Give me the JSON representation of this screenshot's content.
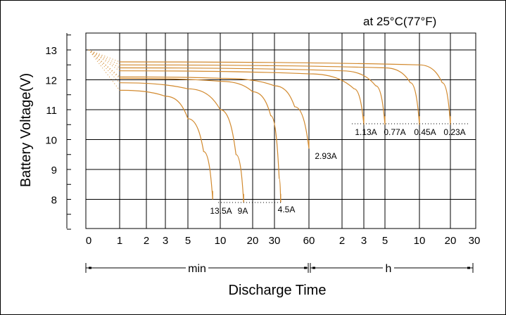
{
  "chart_data": {
    "type": "line",
    "title": "at 25°C(77°F)",
    "xlabel": "Discharge Time",
    "ylabel": "Battery Voltage(V)",
    "ylim": [
      7,
      13.5
    ],
    "y_ticks": [
      "13",
      "12",
      "11",
      "10",
      "9",
      "8"
    ],
    "x_ticks_min": [
      "0",
      "1",
      "2",
      "3",
      "5",
      "10",
      "20",
      "30",
      "60"
    ],
    "x_ticks_h": [
      "2",
      "3",
      "5",
      "10",
      "20",
      "30"
    ],
    "x_units": {
      "min_label": "min",
      "h_label": "h"
    },
    "grid": true,
    "line_color": "#d28a2f",
    "series": [
      {
        "name": "13.5A",
        "points": [
          [
            0,
            13.0
          ],
          [
            1,
            11.65
          ],
          [
            3,
            11.45
          ],
          [
            5,
            10.7
          ],
          [
            7,
            9.6
          ],
          [
            8.5,
            8.0
          ]
        ],
        "end_minutes": 8.5
      },
      {
        "name": "9A",
        "points": [
          [
            0,
            13.0
          ],
          [
            1,
            11.9
          ],
          [
            5,
            11.7
          ],
          [
            10,
            11.0
          ],
          [
            14,
            9.5
          ],
          [
            16.5,
            7.9
          ]
        ],
        "end_minutes": 16.5
      },
      {
        "name": "4.5A",
        "points": [
          [
            0,
            13.0
          ],
          [
            1,
            12.05
          ],
          [
            10,
            11.95
          ],
          [
            20,
            11.6
          ],
          [
            28,
            10.8
          ],
          [
            33,
            8.7
          ],
          [
            34,
            7.9
          ]
        ],
        "end_minutes": 34
      },
      {
        "name": "2.93A",
        "points": [
          [
            0,
            13.0
          ],
          [
            1,
            12.1
          ],
          [
            10,
            12.05
          ],
          [
            30,
            11.8
          ],
          [
            45,
            11.1
          ],
          [
            60,
            9.7
          ]
        ],
        "end_minutes": 60
      },
      {
        "name": "1.13A",
        "points": [
          [
            0,
            13.0
          ],
          [
            1,
            12.3
          ],
          [
            60,
            12.2
          ],
          [
            150,
            11.7
          ],
          [
            180,
            10.5
          ]
        ],
        "end_minutes": 180
      },
      {
        "name": "0.77A",
        "points": [
          [
            0,
            13.0
          ],
          [
            1,
            12.4
          ],
          [
            120,
            12.3
          ],
          [
            240,
            11.8
          ],
          [
            300,
            10.5
          ]
        ],
        "end_minutes": 300
      },
      {
        "name": "0.45A",
        "points": [
          [
            0,
            13.0
          ],
          [
            1,
            12.5
          ],
          [
            300,
            12.4
          ],
          [
            500,
            11.9
          ],
          [
            600,
            10.5
          ]
        ],
        "end_minutes": 600
      },
      {
        "name": "0.23A",
        "points": [
          [
            0,
            13.0
          ],
          [
            1,
            12.6
          ],
          [
            600,
            12.5
          ],
          [
            1000,
            11.9
          ],
          [
            1200,
            10.5
          ]
        ],
        "end_minutes": 1200
      }
    ]
  }
}
